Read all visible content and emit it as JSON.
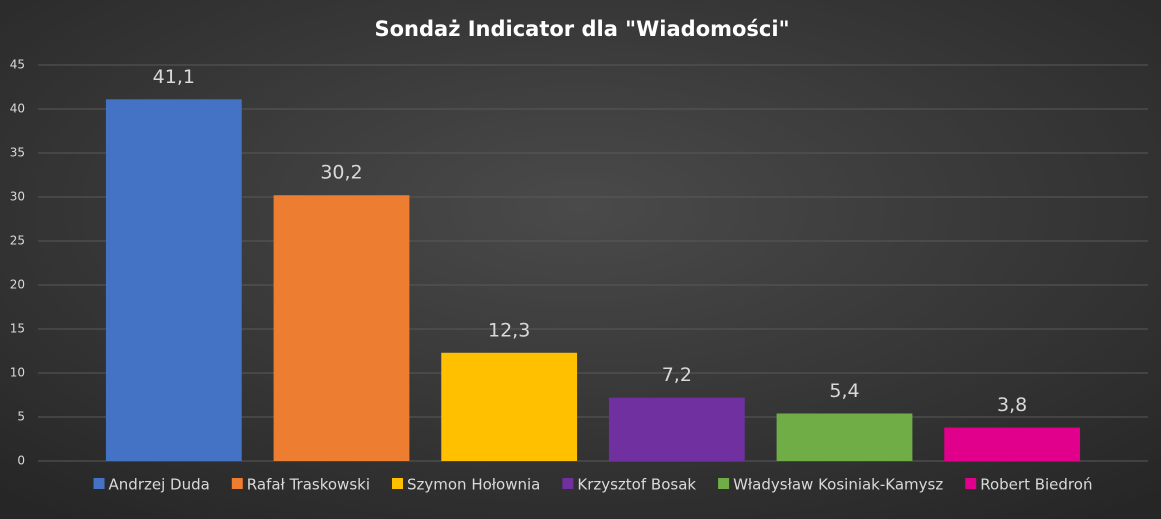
{
  "chart_data": {
    "type": "bar",
    "title": "Sondaż Indicator dla \"Wiadomości\"",
    "series": [
      {
        "name": "Andrzej Duda",
        "color": "#4472c4",
        "values": [
          41.1
        ],
        "value_labels": [
          "41,1"
        ]
      },
      {
        "name": "Rafał Traskowski",
        "color": "#ed7d31",
        "values": [
          30.2
        ],
        "value_labels": [
          "30,2"
        ]
      },
      {
        "name": "Szymon Hołownia",
        "color": "#ffc000",
        "values": [
          12.3
        ],
        "value_labels": [
          "12,3"
        ]
      },
      {
        "name": "Krzysztof Bosak",
        "color": "#7030a0",
        "values": [
          7.2
        ],
        "value_labels": [
          "7,2"
        ]
      },
      {
        "name": "Władysław Kosiniak-Kamysz",
        "color": "#70ad47",
        "values": [
          5.4
        ],
        "value_labels": [
          "5,4"
        ]
      },
      {
        "name": "Robert Biedroń",
        "color": "#e0008c",
        "values": [
          3.8
        ],
        "value_labels": [
          "3,8"
        ]
      }
    ],
    "ylim": [
      0,
      45
    ],
    "yticks": [
      0,
      5,
      10,
      15,
      20,
      25,
      30,
      35,
      40,
      45
    ],
    "grid": true,
    "legend": "bottom"
  }
}
